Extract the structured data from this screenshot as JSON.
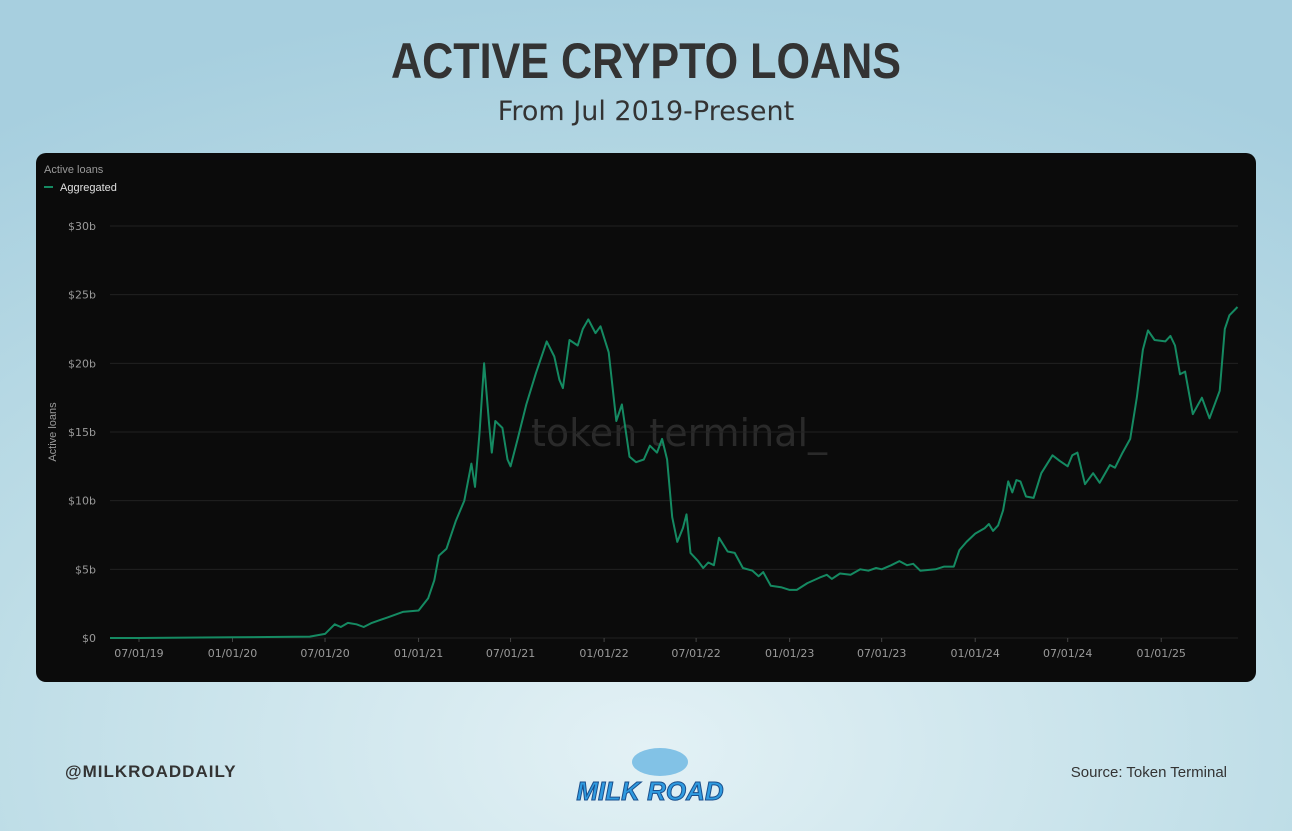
{
  "chart_data": {
    "type": "line",
    "title": "ACTIVE CRYPTO LOANS",
    "subtitle": "From Jul 2019-Present",
    "panel_label": "Active loans",
    "y_label": "Active loans",
    "watermark": "token terminal_",
    "grid": true,
    "legend": "top-left",
    "xlim": [
      "2019-05-05",
      "2025-06-01"
    ],
    "xticks": [
      {
        "value": "2019-07-01",
        "label": "07/01/19"
      },
      {
        "value": "2020-01-01",
        "label": "01/01/20"
      },
      {
        "value": "2020-07-01",
        "label": "07/01/20"
      },
      {
        "value": "2021-01-01",
        "label": "01/01/21"
      },
      {
        "value": "2021-07-01",
        "label": "07/01/21"
      },
      {
        "value": "2022-01-01",
        "label": "01/01/22"
      },
      {
        "value": "2022-07-01",
        "label": "07/01/22"
      },
      {
        "value": "2023-01-01",
        "label": "01/01/23"
      },
      {
        "value": "2023-07-01",
        "label": "07/01/23"
      },
      {
        "value": "2024-01-01",
        "label": "01/01/24"
      },
      {
        "value": "2024-07-01",
        "label": "07/01/24"
      },
      {
        "value": "2025-01-01",
        "label": "01/01/25"
      }
    ],
    "ylim": [
      0,
      30
    ],
    "yticks": [
      {
        "value": 0,
        "label": "$0"
      },
      {
        "value": 5,
        "label": "$5b"
      },
      {
        "value": 10,
        "label": "$10b"
      },
      {
        "value": 15,
        "label": "$15b"
      },
      {
        "value": 20,
        "label": "$20b"
      },
      {
        "value": 25,
        "label": "$25b"
      },
      {
        "value": 30,
        "label": "$30b"
      }
    ],
    "x": [
      "2019-05-05",
      "2019-07-01",
      "2020-01-01",
      "2020-06-01",
      "2020-07-01",
      "2020-07-20",
      "2020-08-01",
      "2020-08-15",
      "2020-09-01",
      "2020-09-15",
      "2020-10-01",
      "2020-11-01",
      "2020-12-01",
      "2021-01-01",
      "2021-01-20",
      "2021-02-01",
      "2021-02-10",
      "2021-02-25",
      "2021-03-15",
      "2021-04-01",
      "2021-04-15",
      "2021-04-22",
      "2021-05-01",
      "2021-05-10",
      "2021-05-20",
      "2021-05-25",
      "2021-06-01",
      "2021-06-15",
      "2021-06-25",
      "2021-07-01",
      "2021-07-15",
      "2021-08-01",
      "2021-08-20",
      "2021-09-10",
      "2021-09-25",
      "2021-10-05",
      "2021-10-12",
      "2021-10-25",
      "2021-11-10",
      "2021-11-20",
      "2021-12-01",
      "2021-12-15",
      "2021-12-25",
      "2022-01-10",
      "2022-01-25",
      "2022-02-05",
      "2022-02-20",
      "2022-03-05",
      "2022-03-20",
      "2022-04-01",
      "2022-04-15",
      "2022-04-25",
      "2022-05-05",
      "2022-05-15",
      "2022-05-25",
      "2022-06-05",
      "2022-06-12",
      "2022-06-20",
      "2022-07-05",
      "2022-07-15",
      "2022-07-25",
      "2022-08-05",
      "2022-08-15",
      "2022-09-01",
      "2022-09-15",
      "2022-10-01",
      "2022-10-20",
      "2022-11-01",
      "2022-11-10",
      "2022-11-25",
      "2022-12-15",
      "2023-01-01",
      "2023-01-15",
      "2023-02-05",
      "2023-03-01",
      "2023-03-15",
      "2023-03-25",
      "2023-04-10",
      "2023-05-01",
      "2023-05-20",
      "2023-06-05",
      "2023-06-20",
      "2023-07-01",
      "2023-07-20",
      "2023-08-05",
      "2023-08-20",
      "2023-09-01",
      "2023-09-15",
      "2023-10-15",
      "2023-11-01",
      "2023-11-20",
      "2023-12-01",
      "2023-12-15",
      "2024-01-01",
      "2024-01-20",
      "2024-01-28",
      "2024-02-05",
      "2024-02-15",
      "2024-02-25",
      "2024-03-06",
      "2024-03-14",
      "2024-03-22",
      "2024-03-30",
      "2024-04-10",
      "2024-04-25",
      "2024-05-10",
      "2024-06-01",
      "2024-06-15",
      "2024-07-01",
      "2024-07-10",
      "2024-07-20",
      "2024-08-04",
      "2024-08-20",
      "2024-09-02",
      "2024-09-22",
      "2024-10-02",
      "2024-10-17",
      "2024-11-01",
      "2024-11-14",
      "2024-11-26",
      "2024-12-06",
      "2024-12-19",
      "2025-01-09",
      "2025-01-19",
      "2025-01-28",
      "2025-02-07",
      "2025-02-17",
      "2025-03-04",
      "2025-03-22",
      "2025-04-06",
      "2025-04-26",
      "2025-05-06",
      "2025-05-15",
      "2025-05-31"
    ],
    "series": [
      {
        "name": "Aggregated",
        "color": "#158a62",
        "values": [
          0,
          0,
          0.05,
          0.1,
          0.3,
          1.0,
          0.8,
          1.1,
          1.0,
          0.8,
          1.1,
          1.5,
          1.9,
          2.0,
          2.9,
          4.2,
          6.0,
          6.5,
          8.5,
          10.0,
          12.7,
          11.0,
          15.0,
          20.0,
          15.5,
          13.5,
          15.8,
          15.3,
          13.0,
          12.5,
          14.5,
          17.0,
          19.3,
          21.6,
          20.5,
          18.8,
          18.2,
          21.7,
          21.3,
          22.5,
          23.2,
          22.2,
          22.7,
          20.8,
          15.8,
          17.0,
          13.2,
          12.8,
          13.0,
          14.0,
          13.5,
          14.5,
          13.0,
          8.8,
          7.0,
          8.0,
          9.0,
          6.2,
          5.6,
          5.1,
          5.5,
          5.3,
          7.3,
          6.3,
          6.2,
          5.1,
          4.9,
          4.5,
          4.8,
          3.8,
          3.7,
          3.5,
          3.5,
          4.0,
          4.4,
          4.6,
          4.3,
          4.7,
          4.6,
          5.0,
          4.9,
          5.1,
          5.0,
          5.3,
          5.6,
          5.3,
          5.4,
          4.9,
          5.0,
          5.2,
          5.2,
          6.4,
          7.0,
          7.6,
          8.0,
          8.3,
          7.8,
          8.2,
          9.3,
          11.4,
          10.6,
          11.5,
          11.4,
          10.3,
          10.2,
          12.0,
          13.3,
          12.9,
          12.5,
          13.3,
          13.5,
          11.2,
          12.0,
          11.3,
          12.6,
          12.4,
          13.5,
          14.5,
          17.5,
          21.0,
          22.4,
          21.7,
          21.6,
          22.0,
          21.3,
          19.2,
          19.4,
          16.3,
          17.5,
          16.0,
          18.0,
          22.5,
          23.5,
          24.1
        ]
      }
    ]
  },
  "footer": {
    "handle": "@MILKROADDAILY",
    "logo": "MILK ROAD",
    "source": "Source: Token Terminal"
  }
}
